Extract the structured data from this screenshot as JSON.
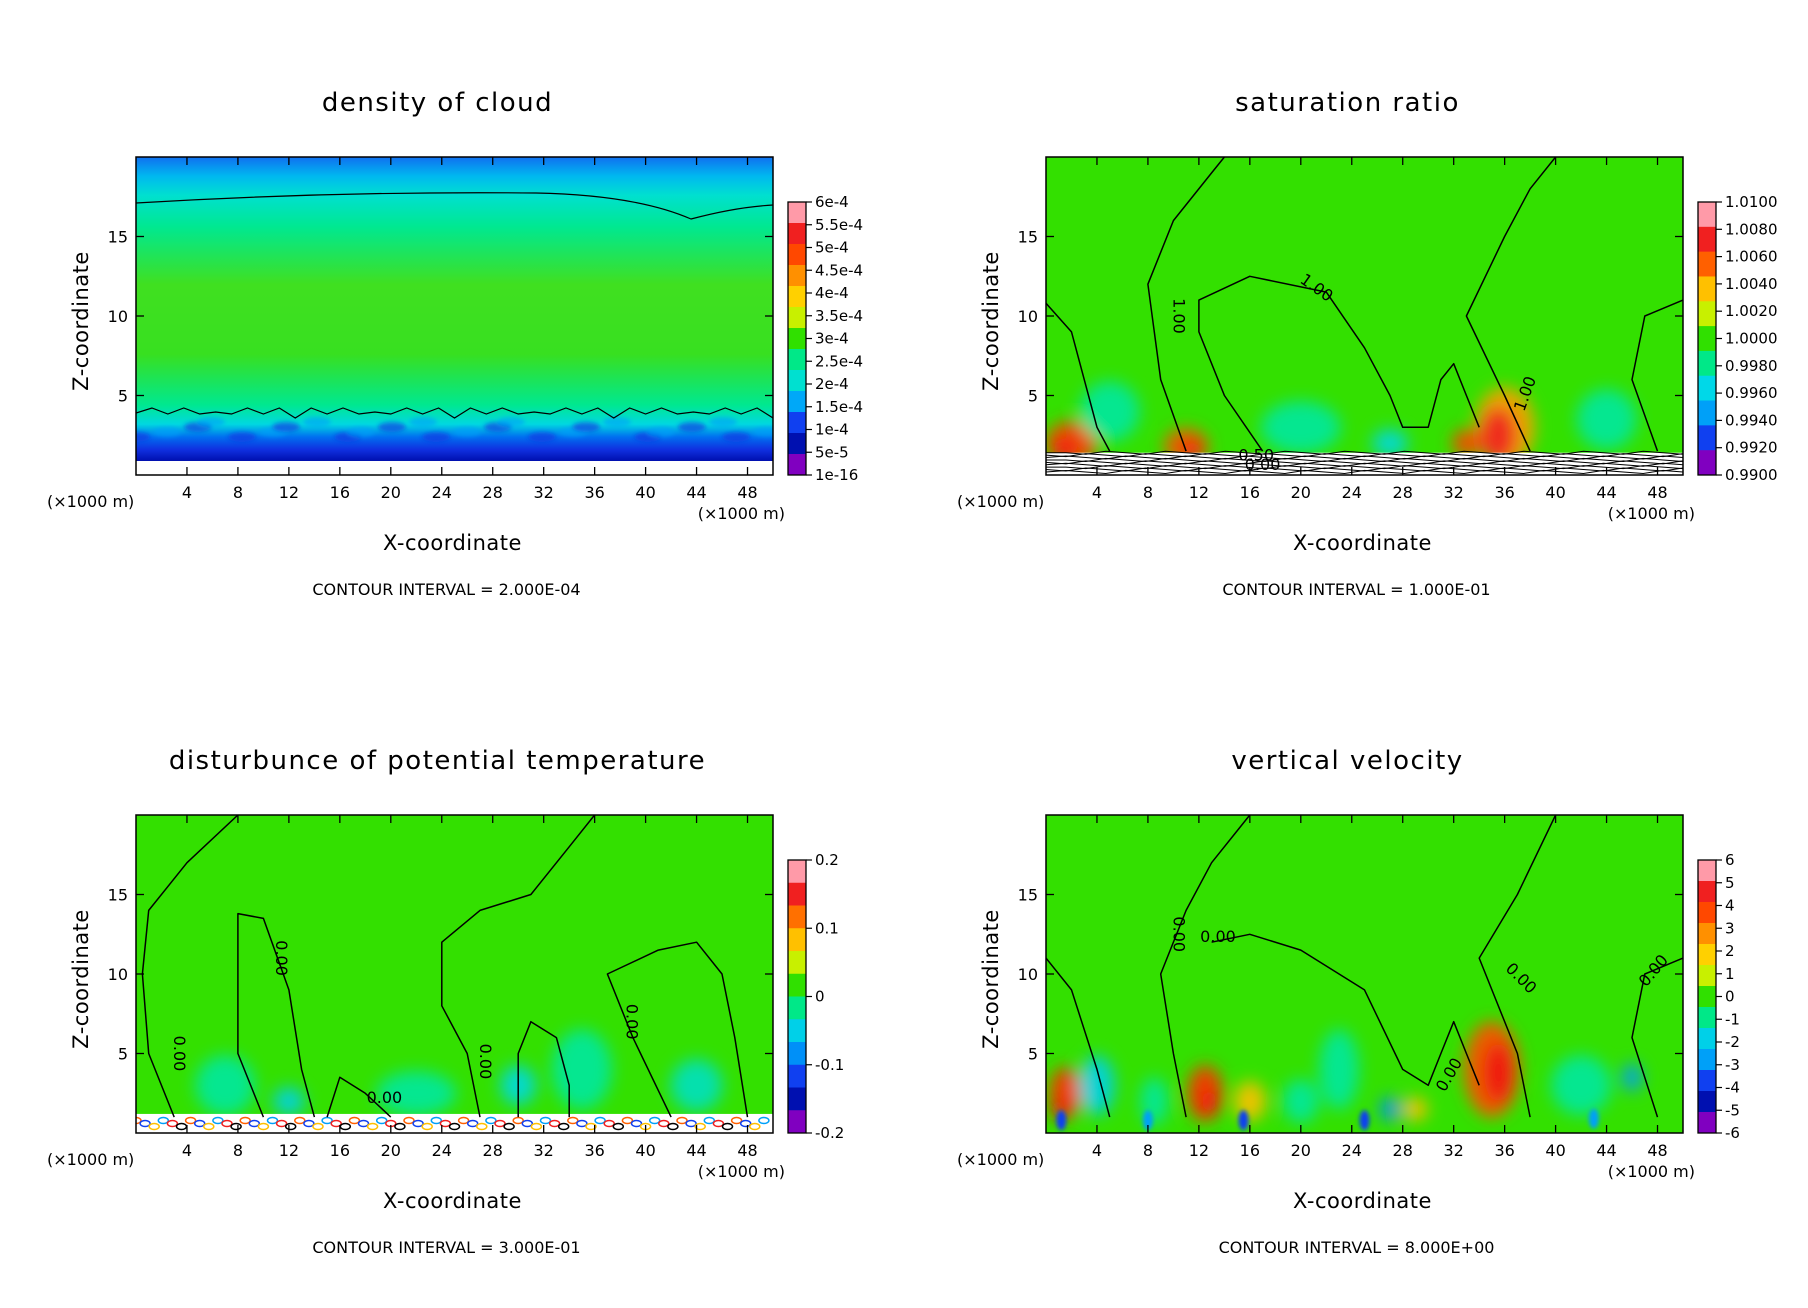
{
  "chart_data": [
    {
      "type": "heatmap",
      "title": "density of cloud",
      "xlabel": "X-coordinate",
      "ylabel": "Z-coordinate",
      "x_unit": "(×1000 m)",
      "y_unit": "(×1000 m)",
      "xlim": [
        0,
        50
      ],
      "ylim": [
        0,
        20
      ],
      "x_ticks": [
        "4",
        "8",
        "12",
        "16",
        "20",
        "24",
        "28",
        "32",
        "36",
        "40",
        "44",
        "48"
      ],
      "y_ticks": [
        "5",
        "10",
        "15"
      ],
      "colorbar": {
        "labels": [
          "6e-4",
          "5.5e-4",
          "5e-4",
          "4.5e-4",
          "4e-4",
          "3.5e-4",
          "3e-4",
          "2.5e-4",
          "2e-4",
          "1.5e-4",
          "1e-4",
          "5e-5",
          "1e-16"
        ],
        "colors": [
          "#ff9aa8",
          "#f02020",
          "#ff4800",
          "#ff9000",
          "#ffd000",
          "#c8f000",
          "#30e000",
          "#00e888",
          "#00e0d0",
          "#00a8f8",
          "#1040f0",
          "#0010b0",
          "#8000c0"
        ]
      },
      "contour_interval": "CONTOUR INTERVAL = 2.000E-04",
      "contour_labels": []
    },
    {
      "type": "heatmap",
      "title": "saturation ratio",
      "xlabel": "X-coordinate",
      "ylabel": "Z-coordinate",
      "x_unit": "(×1000 m)",
      "y_unit": "(×1000 m)",
      "xlim": [
        0,
        50
      ],
      "ylim": [
        0,
        20
      ],
      "x_ticks": [
        "4",
        "8",
        "12",
        "16",
        "20",
        "24",
        "28",
        "32",
        "36",
        "40",
        "44",
        "48"
      ],
      "y_ticks": [
        "5",
        "10",
        "15"
      ],
      "colorbar": {
        "labels": [
          "1.0100",
          "1.0080",
          "1.0060",
          "1.0040",
          "1.0020",
          "1.0000",
          "0.9980",
          "0.9960",
          "0.9940",
          "0.9920",
          "0.9900"
        ],
        "colors": [
          "#ff9aa8",
          "#f02020",
          "#ff6000",
          "#ffc000",
          "#c8f000",
          "#30e000",
          "#00e888",
          "#00d8e8",
          "#00a0f8",
          "#1040f0",
          "#8000c0"
        ]
      },
      "contour_interval": "CONTOUR INTERVAL = 1.000E-01",
      "contour_labels": [
        "1.00",
        "1.00",
        "1.00",
        "0.50",
        "0.00"
      ]
    },
    {
      "type": "heatmap",
      "title": "disturbunce of potential temperature",
      "xlabel": "X-coordinate",
      "ylabel": "Z-coordinate",
      "x_unit": "(×1000 m)",
      "y_unit": "(×1000 m)",
      "xlim": [
        0,
        50
      ],
      "ylim": [
        0,
        20
      ],
      "x_ticks": [
        "4",
        "8",
        "12",
        "16",
        "20",
        "24",
        "28",
        "32",
        "36",
        "40",
        "44",
        "48"
      ],
      "y_ticks": [
        "5",
        "10",
        "15"
      ],
      "colorbar": {
        "labels": [
          "0.2",
          "0.1",
          "0",
          "-0.1",
          "-0.2"
        ],
        "colors": [
          "#ff9aa8",
          "#f02020",
          "#ff7000",
          "#ffc000",
          "#c8f000",
          "#30e000",
          "#00e888",
          "#00d0e8",
          "#0090f8",
          "#1040f0",
          "#0010b0",
          "#8000c0"
        ]
      },
      "contour_interval": "CONTOUR INTERVAL = 3.000E-01",
      "contour_labels": [
        "0.00",
        "0.00",
        "0.00",
        "0.00",
        "0.00"
      ]
    },
    {
      "type": "heatmap",
      "title": "vertical velocity",
      "xlabel": "X-coordinate",
      "ylabel": "Z-coordinate",
      "x_unit": "(×1000 m)",
      "y_unit": "(×1000 m)",
      "xlim": [
        0,
        50
      ],
      "ylim": [
        0,
        20
      ],
      "x_ticks": [
        "4",
        "8",
        "12",
        "16",
        "20",
        "24",
        "28",
        "32",
        "36",
        "40",
        "44",
        "48"
      ],
      "y_ticks": [
        "5",
        "10",
        "15"
      ],
      "colorbar": {
        "labels": [
          "6",
          "5",
          "4",
          "3",
          "2",
          "1",
          "0",
          "-1",
          "-2",
          "-3",
          "-4",
          "-5",
          "-6"
        ],
        "colors": [
          "#ff9aa8",
          "#f02020",
          "#ff4800",
          "#ff9000",
          "#ffd000",
          "#c8f000",
          "#30e000",
          "#00e888",
          "#00d0e8",
          "#00a0f8",
          "#1040f0",
          "#0010b0",
          "#8000c0"
        ]
      },
      "contour_interval": "CONTOUR INTERVAL = 8.000E+00",
      "contour_labels": [
        "0.00",
        "0.00",
        "0.00",
        "0.00",
        "0.00"
      ]
    }
  ]
}
